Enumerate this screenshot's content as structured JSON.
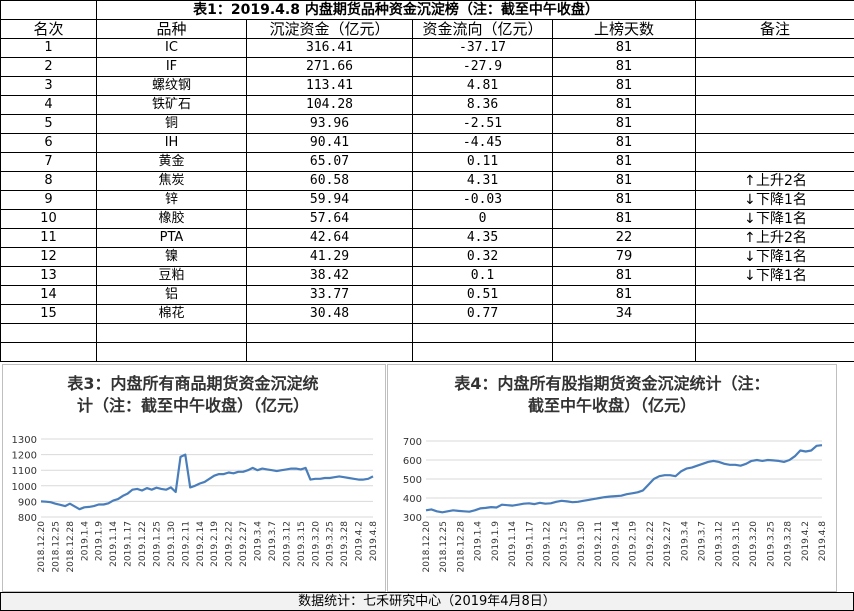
{
  "table": {
    "title": "表1：2019.4.8 内盘期货品种资金沉淀榜（注：截至中午收盘）",
    "headers": [
      "名次",
      "品种",
      "沉淀资金（亿元）",
      "资金流向（亿元）",
      "上榜天数",
      "备注"
    ],
    "rows": [
      {
        "rank": "1",
        "name": "IC",
        "fund": "316.41",
        "flow": "-37.17",
        "days": "81",
        "note": "",
        "dir": ""
      },
      {
        "rank": "2",
        "name": "IF",
        "fund": "271.66",
        "flow": "-27.9",
        "days": "81",
        "note": "",
        "dir": ""
      },
      {
        "rank": "3",
        "name": "螺纹钢",
        "fund": "113.41",
        "flow": "4.81",
        "days": "81",
        "note": "",
        "dir": ""
      },
      {
        "rank": "4",
        "name": "铁矿石",
        "fund": "104.28",
        "flow": "8.36",
        "days": "81",
        "note": "",
        "dir": ""
      },
      {
        "rank": "5",
        "name": "铜",
        "fund": "93.96",
        "flow": "-2.51",
        "days": "81",
        "note": "",
        "dir": ""
      },
      {
        "rank": "6",
        "name": "IH",
        "fund": "90.41",
        "flow": "-4.45",
        "days": "81",
        "note": "",
        "dir": ""
      },
      {
        "rank": "7",
        "name": "黄金",
        "fund": "65.07",
        "flow": "0.11",
        "days": "81",
        "note": "",
        "dir": ""
      },
      {
        "rank": "8",
        "name": "焦炭",
        "fund": "60.58",
        "flow": "4.31",
        "days": "81",
        "note": "上升2名",
        "dir": "up"
      },
      {
        "rank": "9",
        "name": "锌",
        "fund": "59.94",
        "flow": "-0.03",
        "days": "81",
        "note": "下降1名",
        "dir": "down"
      },
      {
        "rank": "10",
        "name": "橡胶",
        "fund": "57.64",
        "flow": "0",
        "days": "81",
        "note": "下降1名",
        "dir": "down"
      },
      {
        "rank": "11",
        "name": "PTA",
        "fund": "42.64",
        "flow": "4.35",
        "days": "22",
        "note": "上升2名",
        "dir": "up"
      },
      {
        "rank": "12",
        "name": "镍",
        "fund": "41.29",
        "flow": "0.32",
        "days": "79",
        "note": "下降1名",
        "dir": "down"
      },
      {
        "rank": "13",
        "name": "豆粕",
        "fund": "38.42",
        "flow": "0.1",
        "days": "81",
        "note": "下降1名",
        "dir": "down"
      },
      {
        "rank": "14",
        "name": "铝",
        "fund": "33.77",
        "flow": "0.51",
        "days": "81",
        "note": "",
        "dir": ""
      },
      {
        "rank": "15",
        "name": "棉花",
        "fund": "30.48",
        "flow": "0.77",
        "days": "34",
        "note": "",
        "dir": ""
      }
    ]
  },
  "chart_data": [
    {
      "type": "line",
      "title": "表3：内盘所有商品期货资金沉淀统计（注：截至中午收盘）（亿元）",
      "title_lines": [
        "表3：内盘所有商品期货资金沉淀统",
        "计（注：截至中午收盘）（亿元）"
      ],
      "xlabel": "",
      "ylabel": "",
      "ylim": [
        800,
        1300
      ],
      "yticks": [
        800,
        900,
        1000,
        1100,
        1200,
        1300
      ],
      "x_ticks": [
        "2018.12.20",
        "2018.12.25",
        "2018.12.28",
        "2019.1.4",
        "2019.1.9",
        "2019.1.14",
        "2019.1.17",
        "2019.1.22",
        "2019.1.25",
        "2019.1.30",
        "2019.2.11",
        "2019.2.14",
        "2019.2.19",
        "2019.2.22",
        "2019.2.27",
        "2019.3.4",
        "2019.3.7",
        "2019.3.12",
        "2019.3.15",
        "2019.3.20",
        "2019.3.25",
        "2019.3.28",
        "2019.4.2",
        "2019.4.8"
      ],
      "grid": true,
      "color": "#4a7ebb",
      "values": [
        900,
        898,
        895,
        885,
        878,
        870,
        885,
        868,
        850,
        862,
        865,
        870,
        880,
        880,
        888,
        905,
        915,
        935,
        950,
        975,
        980,
        970,
        985,
        975,
        988,
        980,
        975,
        990,
        960,
        1185,
        1200,
        990,
        1000,
        1015,
        1025,
        1045,
        1065,
        1075,
        1075,
        1085,
        1080,
        1090,
        1090,
        1100,
        1115,
        1100,
        1110,
        1105,
        1100,
        1095,
        1100,
        1105,
        1110,
        1110,
        1105,
        1115,
        1040,
        1045,
        1045,
        1050,
        1050,
        1055,
        1060,
        1055,
        1050,
        1045,
        1040,
        1040,
        1045,
        1060
      ]
    },
    {
      "type": "line",
      "title": "表4：内盘所有股指期货资金沉淀统计（注：截至中午收盘）（亿元）",
      "title_lines": [
        "表4：内盘所有股指期货资金沉淀统计（注：",
        "截至中午收盘）（亿元）"
      ],
      "xlabel": "",
      "ylabel": "",
      "ylim": [
        300,
        700
      ],
      "yticks": [
        300,
        400,
        500,
        600,
        700
      ],
      "x_ticks": [
        "2018.12.20",
        "2018.12.25",
        "2018.12.28",
        "2019.1.4",
        "2019.1.9",
        "2019.1.14",
        "2019.1.17",
        "2019.1.22",
        "2019.1.25",
        "2019.1.30",
        "2019.2.11",
        "2019.2.14",
        "2019.2.19",
        "2019.2.22",
        "2019.2.27",
        "2019.3.4",
        "2019.3.7",
        "2019.3.12",
        "2019.3.15",
        "2019.3.20",
        "2019.3.25",
        "2019.3.28",
        "2019.4.2",
        "2019.4.8"
      ],
      "grid": true,
      "color": "#4a7ebb",
      "values": [
        335,
        340,
        330,
        325,
        330,
        335,
        332,
        330,
        328,
        335,
        345,
        348,
        352,
        350,
        365,
        362,
        360,
        365,
        370,
        372,
        368,
        375,
        370,
        372,
        380,
        385,
        382,
        378,
        380,
        385,
        390,
        395,
        400,
        405,
        408,
        410,
        412,
        420,
        425,
        430,
        440,
        470,
        500,
        515,
        520,
        520,
        515,
        540,
        555,
        560,
        570,
        580,
        590,
        595,
        590,
        580,
        575,
        575,
        570,
        580,
        595,
        600,
        595,
        600,
        598,
        595,
        590,
        600,
        620,
        650,
        645,
        650,
        675,
        678
      ]
    }
  ],
  "footer": "数据统计：七禾研究中心（2019年4月8日）"
}
